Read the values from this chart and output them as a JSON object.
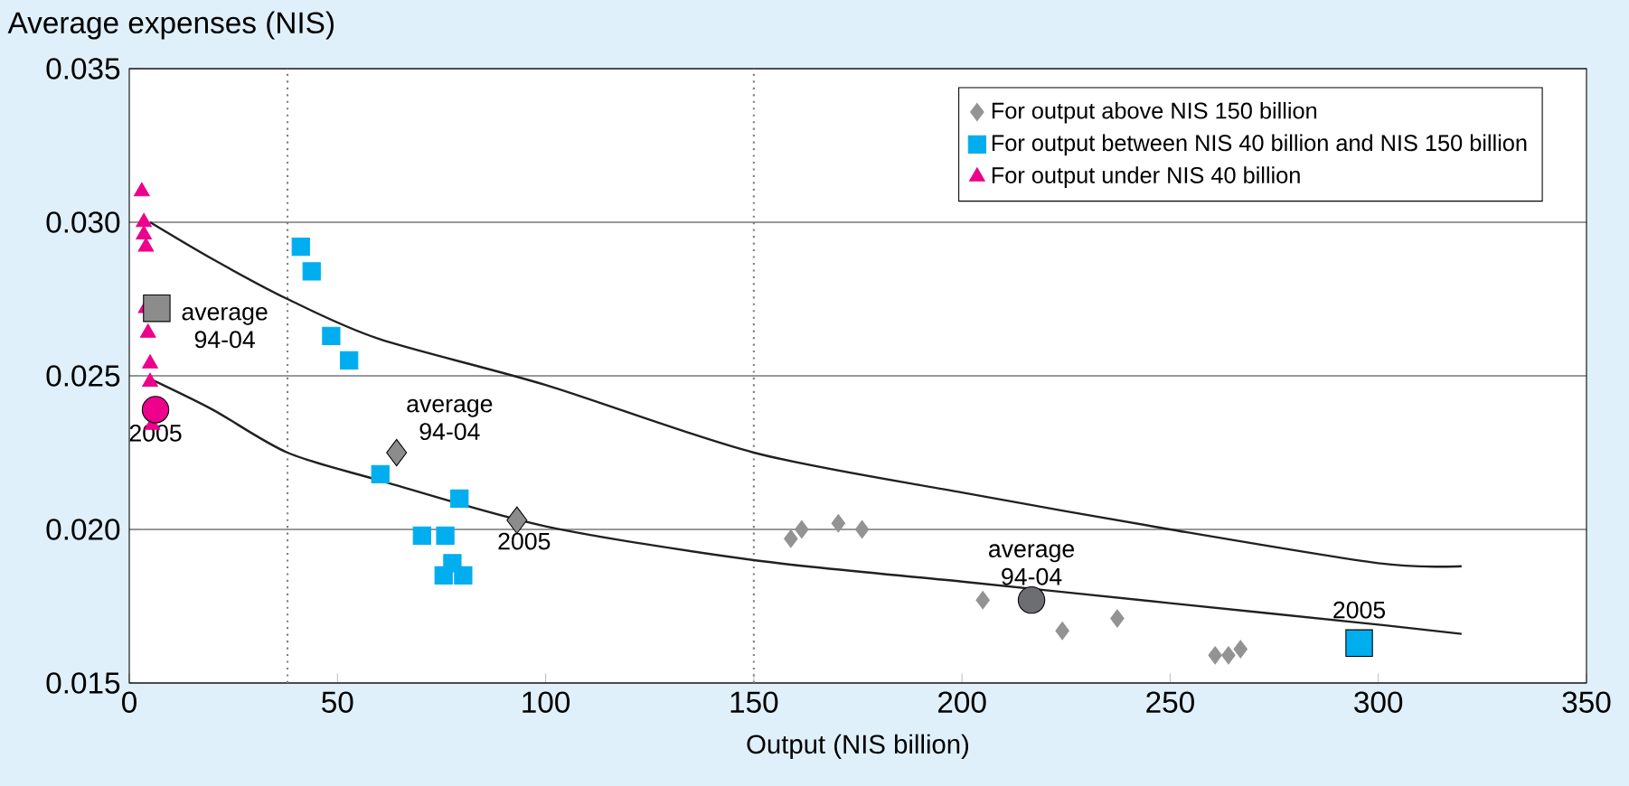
{
  "chart_data": {
    "type": "scatter",
    "ylabel": "Average expenses (NIS)",
    "xlabel": "Output (NIS billion)",
    "xlim": [
      0,
      350
    ],
    "ylim": [
      0.015,
      0.035
    ],
    "xticks": [
      0,
      50,
      100,
      150,
      200,
      250,
      300,
      350
    ],
    "yticks": [
      {
        "value": 0.015,
        "label": "0.015"
      },
      {
        "value": 0.02,
        "label": "0.020"
      },
      {
        "value": 0.025,
        "label": "0.025"
      },
      {
        "value": 0.03,
        "label": "0.030"
      },
      {
        "value": 0.035,
        "label": "0.035"
      }
    ],
    "grid": "y",
    "legend": "top right",
    "series": [
      {
        "name": "For output above NIS 150 billion",
        "color": "#939393",
        "marker": "diamond",
        "x": [
          158.9,
          161.5,
          170.3,
          176,
          205,
          224.1,
          237.3,
          260.8,
          264,
          266.9
        ],
        "values": [
          0.0197,
          0.02,
          0.0202,
          0.02,
          0.0177,
          0.0167,
          0.0171,
          0.0159,
          0.0159,
          0.0161
        ]
      },
      {
        "name": "For output between NIS 40 billion and NIS 150 billion",
        "color": "#00aeef",
        "marker": "square",
        "x": [
          41.2,
          43.8,
          48.5,
          52.8,
          60.3,
          79.3,
          70.3,
          75.9,
          77.6,
          75.5,
          80.2
        ],
        "values": [
          0.0292,
          0.0284,
          0.0263,
          0.0255,
          0.0218,
          0.021,
          0.0198,
          0.0198,
          0.0189,
          0.0185,
          0.0185
        ]
      },
      {
        "name": "For output under NIS 40 billion",
        "color": "#ec008c",
        "marker": "triangle",
        "x": [
          3,
          3.5,
          3.5,
          4,
          4,
          4.5,
          5,
          5,
          5.5
        ],
        "values": [
          0.031,
          0.03,
          0.0296,
          0.0292,
          0.0272,
          0.0264,
          0.0254,
          0.0248,
          0.0234
        ]
      },
      {
        "color": "#8c8c8c",
        "marker": "square",
        "x": [
          6.6
        ],
        "values": [
          0.0272
        ]
      },
      {
        "color": "#ec008c",
        "marker": "circle",
        "x": [
          6.3
        ],
        "values": [
          0.0239
        ]
      },
      {
        "color": "#8c8c8c",
        "marker": "diamond",
        "x": [
          64.2
        ],
        "values": [
          0.0225
        ]
      },
      {
        "color": "#8c8c8c",
        "marker": "diamond",
        "x": [
          93.1
        ],
        "values": [
          0.0203
        ]
      },
      {
        "color": "#00aeef",
        "marker": "square",
        "x": [
          295.4
        ],
        "values": [
          0.0163
        ]
      },
      {
        "color": "#6d6e71",
        "marker": "circle",
        "x": [
          216.7
        ],
        "values": [
          0.0177
        ]
      },
      {
        "type": "line",
        "color": "#231f20",
        "marker": "none",
        "line_style": "solid",
        "x": [
          5,
          20,
          38,
          60,
          100,
          150,
          200,
          250,
          300,
          320
        ],
        "values": [
          0.03,
          0.0288,
          0.0275,
          0.0262,
          0.0247,
          0.0225,
          0.0212,
          0.02,
          0.0189,
          0.0188
        ]
      },
      {
        "type": "line",
        "color": "#231f20",
        "marker": "none",
        "line_style": "solid",
        "x": [
          5,
          20,
          38,
          60,
          100,
          150,
          200,
          250,
          300,
          320
        ],
        "values": [
          0.0249,
          0.0239,
          0.0225,
          0.0216,
          0.0201,
          0.019,
          0.0183,
          0.0176,
          0.0169,
          0.0166
        ]
      }
    ],
    "ref_lines": [
      {
        "axis": "x",
        "value": 38,
        "color": "#808080",
        "line_style": "dotted"
      },
      {
        "axis": "x",
        "value": 150,
        "color": "#808080",
        "line_style": "dotted"
      }
    ],
    "annotations": [
      {
        "text": "average 94-04",
        "x": 6.6,
        "y": 0.0272
      },
      {
        "text": "2005",
        "x": 6.3,
        "y": 0.0239
      },
      {
        "text": "average 94-04",
        "x": 64.2,
        "y": 0.0225
      },
      {
        "text": "2005",
        "x": 93.1,
        "y": 0.0203
      },
      {
        "text": "average 94-04",
        "x": 216.7,
        "y": 0.0177
      },
      {
        "text": "2005",
        "x": 295.4,
        "y": 0.0163
      }
    ]
  }
}
